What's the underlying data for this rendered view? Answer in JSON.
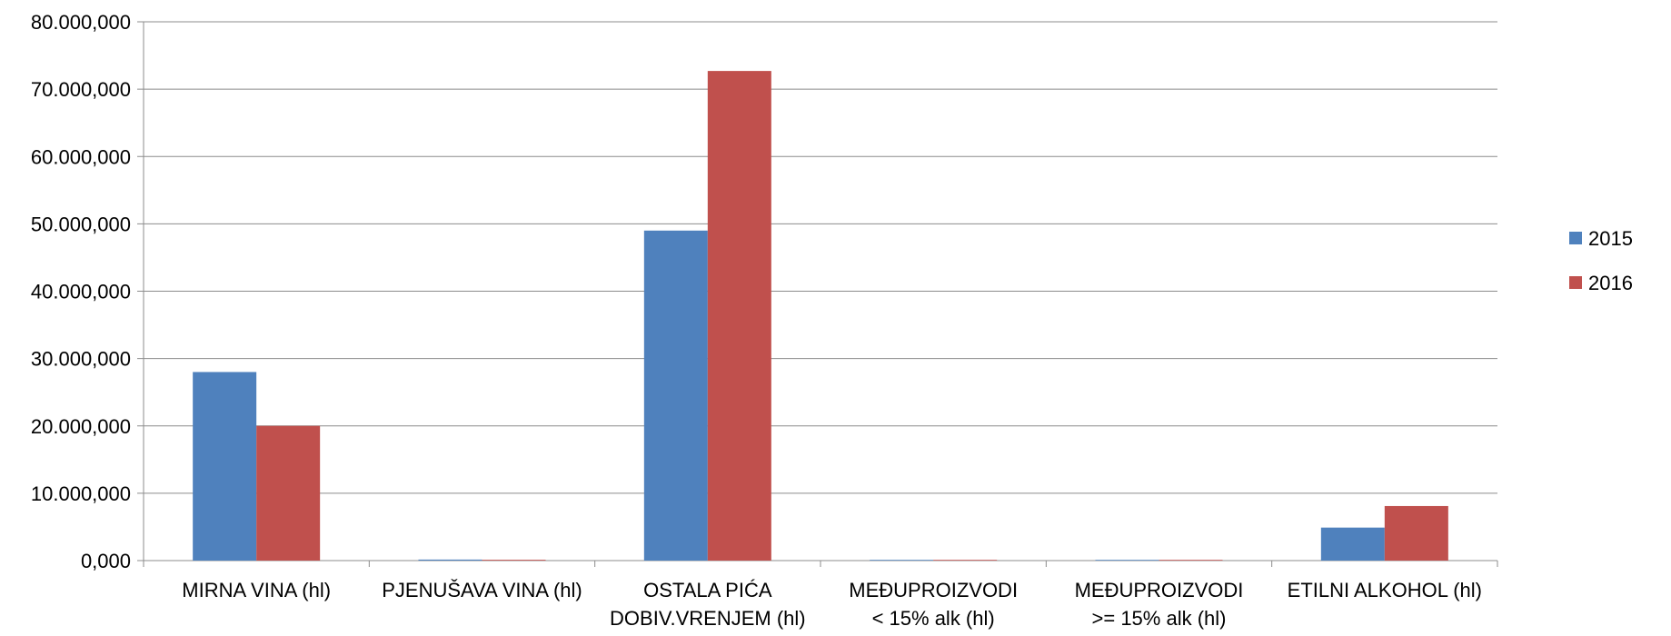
{
  "chart_data": {
    "type": "bar",
    "title": "",
    "xlabel": "",
    "ylabel": "",
    "categories": [
      [
        "MIRNA VINA (hl)"
      ],
      [
        "PJENUŠAVA VINA (hl)"
      ],
      [
        "OSTALA PIĆA",
        "DOBIV.VRENJEM (hl)"
      ],
      [
        "MEĐUPROIZVODI",
        "<  15% alk (hl)"
      ],
      [
        "MEĐUPROIZVODI",
        ">= 15% alk (hl)"
      ],
      [
        "ETILNI ALKOHOL (hl)"
      ]
    ],
    "series": [
      {
        "name": "2015",
        "color": "#4F81BD",
        "values": [
          28000000,
          150000,
          49000000,
          30000,
          80000,
          4900000
        ]
      },
      {
        "name": "2016",
        "color": "#C0504D",
        "values": [
          20000000,
          120000,
          72700000,
          30000,
          90000,
          8100000
        ]
      }
    ],
    "ylim": [
      0,
      80000000
    ],
    "yticks": [
      0,
      10000000,
      20000000,
      30000000,
      40000000,
      50000000,
      60000000,
      70000000,
      80000000
    ],
    "ytick_labels": [
      "0,000",
      "10.000,000",
      "20.000,000",
      "30.000,000",
      "40.000,000",
      "50.000,000",
      "60.000,000",
      "70.000,000",
      "80.000,000"
    ],
    "grid": true,
    "legend_position": "right"
  }
}
